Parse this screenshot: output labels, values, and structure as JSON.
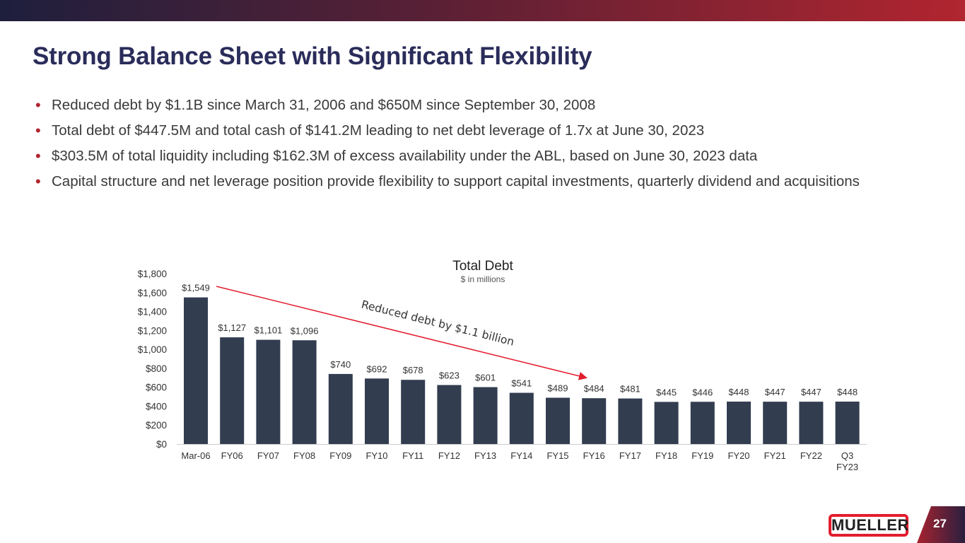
{
  "title": "Strong Balance Sheet with Significant Flexibility",
  "bullets": [
    "Reduced debt by $1.1B since March 31, 2006 and $650M since September 30, 2008",
    "Total debt of $447.5M and total cash of $141.2M leading to net debt leverage of 1.7x at June 30, 2023",
    "$303.5M of total liquidity including $162.3M of excess availability under the ABL, based on June 30, 2023 data",
    "Capital structure and net leverage position provide flexibility to support capital investments, quarterly dividend and acquisitions"
  ],
  "bullet_symbol": "•",
  "logo_text": "MUELLER",
  "page_number": "27",
  "chart_data": {
    "type": "bar",
    "title": "Total Debt",
    "subtitle": "$ in millions",
    "annotation": "Reduced debt by $1.1 billion",
    "categories": [
      "Mar-06",
      "FY06",
      "FY07",
      "FY08",
      "FY09",
      "FY10",
      "FY11",
      "FY12",
      "FY13",
      "FY14",
      "FY15",
      "FY16",
      "FY17",
      "FY18",
      "FY19",
      "FY20",
      "FY21",
      "FY22",
      "Q3 FY23"
    ],
    "values": [
      1549,
      1127,
      1101,
      1096,
      740,
      692,
      678,
      623,
      601,
      541,
      489,
      484,
      481,
      445,
      446,
      448,
      447,
      447,
      448
    ],
    "labels": [
      "$1,549",
      "$1,127",
      "$1,101",
      "$1,096",
      "$740",
      "$692",
      "$678",
      "$623",
      "$601",
      "$541",
      "$489",
      "$484",
      "$481",
      "$445",
      "$446",
      "$448",
      "$447",
      "$447",
      "$448"
    ],
    "yticks": [
      "$0",
      "$200",
      "$400",
      "$600",
      "$800",
      "$1,000",
      "$1,200",
      "$1,400",
      "$1,600",
      "$1,800"
    ],
    "ylim": [
      0,
      1800
    ],
    "bar_color": "#323d50",
    "arrow_color": "#e21d2e",
    "grid": false
  }
}
